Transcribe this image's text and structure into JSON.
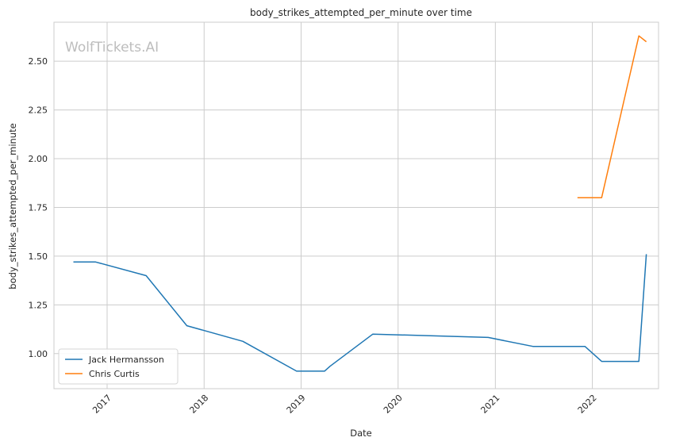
{
  "chart_data": {
    "type": "line",
    "title": "body_strikes_attempted_per_minute over time",
    "xlabel": "Date",
    "ylabel": "body_strikes_attempted_per_minute",
    "watermark": "WolfTickets.AI",
    "x_ticks": [
      "2017",
      "2018",
      "2019",
      "2020",
      "2021",
      "2022"
    ],
    "y_ticks": [
      "1.00",
      "1.25",
      "1.50",
      "1.75",
      "2.00",
      "2.25",
      "2.50"
    ],
    "xlim": [
      "2016-06-15",
      "2022-09-07"
    ],
    "ylim": [
      0.82,
      2.7
    ],
    "grid": true,
    "legend_position": "bottom-left",
    "series": [
      {
        "name": "Jack Hermansson",
        "color": "#1f77b4",
        "points": [
          [
            "2016-08-27",
            1.47
          ],
          [
            "2016-11-19",
            1.47
          ],
          [
            "2017-05-28",
            1.4
          ],
          [
            "2017-10-28",
            1.143
          ],
          [
            "2018-05-27",
            1.063
          ],
          [
            "2018-12-15",
            0.91
          ],
          [
            "2019-03-30",
            0.91
          ],
          [
            "2019-04-20",
            0.935
          ],
          [
            "2019-09-28",
            1.1
          ],
          [
            "2020-12-05",
            1.083
          ],
          [
            "2021-05-22",
            1.037
          ],
          [
            "2021-12-04",
            1.037
          ],
          [
            "2022-02-05",
            0.96
          ],
          [
            "2022-06-25",
            0.96
          ],
          [
            "2022-07-23",
            1.51
          ]
        ]
      },
      {
        "name": "Chris Curtis",
        "color": "#ff7f0e",
        "points": [
          [
            "2021-11-06",
            1.8
          ],
          [
            "2022-02-05",
            1.8
          ],
          [
            "2022-06-25",
            2.63
          ],
          [
            "2022-07-23",
            2.6
          ]
        ]
      }
    ]
  }
}
